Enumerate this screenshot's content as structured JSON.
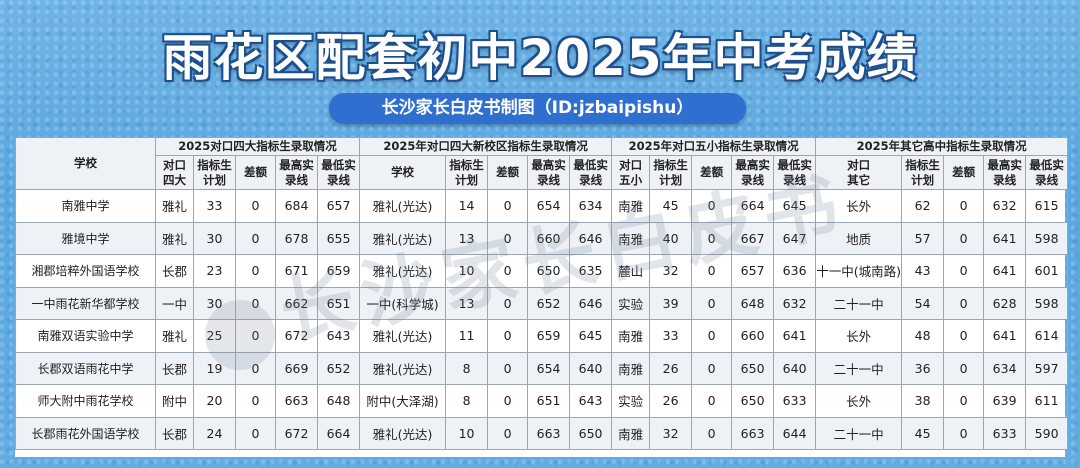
{
  "title": "雨花区配套初中2025年中考成绩",
  "subtitle": "长沙家长白皮书制图（ID:jzbaipishu）",
  "watermark": "长沙家长白皮书",
  "colors": {
    "background": "#63ace2",
    "subtitle_bg": "#2f6fcf",
    "title_outline": "#1e4f8f"
  },
  "table": {
    "school_header": "学校",
    "group_headers": [
      "2025对口四大指标生录取情况",
      "2025年对口四大新校区指标生录取情况",
      "2025年对口五小指标生录取情况",
      "2025年其它高中指标生录取情况"
    ],
    "sub_headers": {
      "g1": [
        "对口四大",
        "指标生计划",
        "差额",
        "最高实录线",
        "最低实录线"
      ],
      "g2": [
        "学校",
        "指标生计划",
        "差额",
        "最高实录线",
        "最低实录线"
      ],
      "g3": [
        "对口五小",
        "指标生计划",
        "差额",
        "最高实录线",
        "最低实录线"
      ],
      "g4": [
        "对口其它",
        "指标生计划",
        "差额",
        "最高实录线",
        "最低实录线"
      ]
    },
    "rows": [
      [
        "南雅中学",
        "雅礼",
        "33",
        "0",
        "684",
        "657",
        "雅礼(光达)",
        "14",
        "0",
        "654",
        "634",
        "南雅",
        "45",
        "0",
        "664",
        "645",
        "长外",
        "62",
        "0",
        "632",
        "615"
      ],
      [
        "雅境中学",
        "雅礼",
        "30",
        "0",
        "678",
        "655",
        "雅礼(光达)",
        "13",
        "0",
        "660",
        "646",
        "南雅",
        "40",
        "0",
        "667",
        "647",
        "地质",
        "57",
        "0",
        "641",
        "598"
      ],
      [
        "湘郡培粹外国语学校",
        "长郡",
        "23",
        "0",
        "671",
        "659",
        "雅礼(光达)",
        "10",
        "0",
        "650",
        "635",
        "麓山",
        "32",
        "0",
        "657",
        "636",
        "十一中(城南路)",
        "43",
        "0",
        "641",
        "601"
      ],
      [
        "一中雨花新华都学校",
        "一中",
        "30",
        "0",
        "662",
        "651",
        "一中(科学城)",
        "13",
        "0",
        "652",
        "646",
        "实验",
        "39",
        "0",
        "648",
        "632",
        "二十一中",
        "54",
        "0",
        "628",
        "598"
      ],
      [
        "南雅双语实验中学",
        "雅礼",
        "25",
        "0",
        "672",
        "643",
        "雅礼(光达)",
        "11",
        "0",
        "659",
        "645",
        "南雅",
        "33",
        "0",
        "660",
        "641",
        "长外",
        "48",
        "0",
        "641",
        "614"
      ],
      [
        "长郡双语雨花中学",
        "长郡",
        "19",
        "0",
        "669",
        "652",
        "雅礼(光达)",
        "8",
        "0",
        "654",
        "640",
        "南雅",
        "26",
        "0",
        "650",
        "640",
        "二十一中",
        "36",
        "0",
        "634",
        "597"
      ],
      [
        "师大附中雨花学校",
        "附中",
        "20",
        "0",
        "663",
        "648",
        "附中(大泽湖)",
        "8",
        "0",
        "651",
        "643",
        "实验",
        "26",
        "0",
        "650",
        "633",
        "长外",
        "38",
        "0",
        "639",
        "611"
      ],
      [
        "长郡雨花外国语学校",
        "长郡",
        "24",
        "0",
        "672",
        "664",
        "雅礼(光达)",
        "10",
        "0",
        "663",
        "650",
        "南雅",
        "32",
        "0",
        "663",
        "644",
        "二十一中",
        "45",
        "0",
        "633",
        "590"
      ]
    ]
  }
}
